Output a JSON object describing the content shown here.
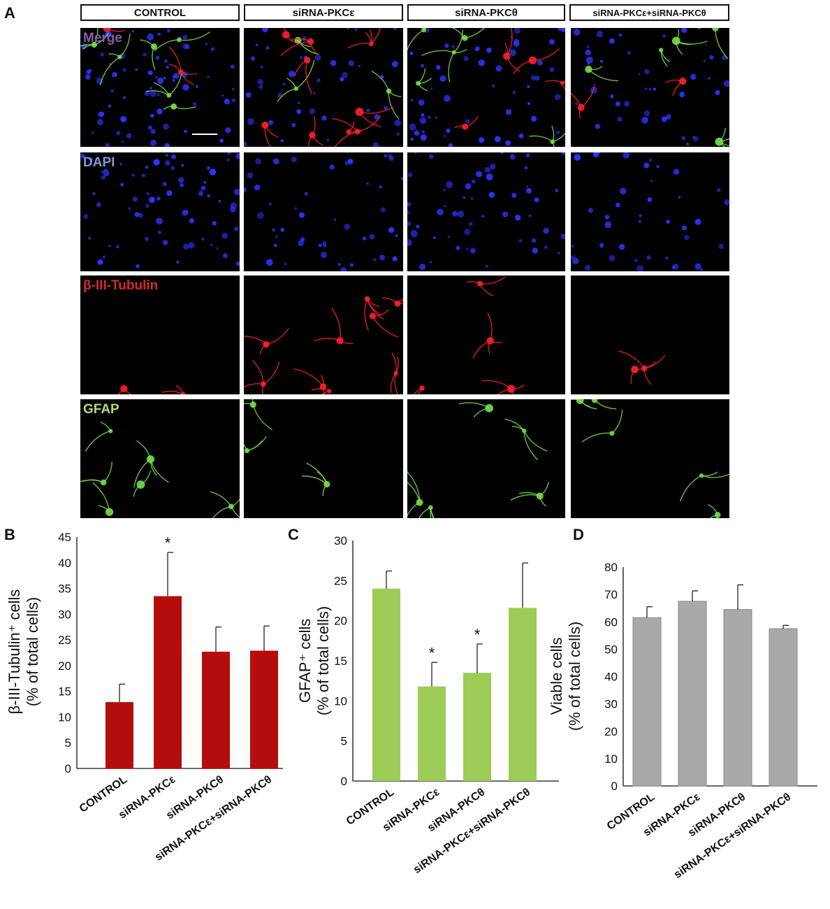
{
  "panel_letters": {
    "a": "A",
    "b": "B",
    "c": "C",
    "d": "D"
  },
  "panel_a": {
    "columns": [
      "CONTROL",
      "siRNA-PKCε",
      "siRNA-PKCθ",
      "siRNA-PKCε+siRNA-PKCθ"
    ],
    "rows": [
      {
        "label": "Merge",
        "label_color": "#8a5aa8",
        "channel": "merge"
      },
      {
        "label": "DAPI",
        "label_color": "#7f95d6",
        "channel": "dapi"
      },
      {
        "label": "β-III-Tubulin",
        "label_color": "#d9272e",
        "channel": "tubulin"
      },
      {
        "label": "GFAP",
        "label_color": "#b8d96b",
        "channel": "gfap"
      }
    ],
    "channel_colors": {
      "dapi": "#2a35ff",
      "tubulin": "#ff1f2a",
      "gfap": "#74e04a"
    }
  },
  "chart_data": [
    {
      "type": "bar",
      "panel": "B",
      "categories": [
        "CONTROL",
        "siRNA-PKCε",
        "siRNA-PKCθ",
        "siRNA-PKCε+siRNA-PKCθ"
      ],
      "values": [
        12.9,
        33.5,
        22.7,
        22.9
      ],
      "errors": [
        3.5,
        8.5,
        4.8,
        4.8
      ],
      "significance": [
        "",
        "*",
        "",
        ""
      ],
      "ylabel": "β-III-Tubulin⁺ cells",
      "ylabel2": "(% of total cells)",
      "ylim": [
        0,
        45
      ],
      "yticks": [
        "0",
        "5",
        "10",
        "15",
        "20",
        "25",
        "30",
        "35",
        "40",
        "45"
      ],
      "color": "#b50d0d"
    },
    {
      "type": "bar",
      "panel": "C",
      "categories": [
        "CONTROL",
        "siRNA-PKCε",
        "siRNA-PKCθ",
        "siRNA-PKCε+siRNA-PKCθ"
      ],
      "values": [
        24.0,
        11.8,
        13.5,
        21.6
      ],
      "errors": [
        2.2,
        3.0,
        3.6,
        5.6
      ],
      "significance": [
        "",
        "*",
        "*",
        ""
      ],
      "ylabel": "GFAP⁺ cells",
      "ylabel2": "(% of total cells)",
      "ylim": [
        0,
        30
      ],
      "yticks": [
        "0",
        "5",
        "10",
        "15",
        "20",
        "25",
        "30"
      ],
      "color": "#9ccc57"
    },
    {
      "type": "bar",
      "panel": "D",
      "categories": [
        "CONTROL",
        "siRNA-PKCε",
        "siRNA-PKCθ",
        "siRNA-PKCε+siRNA-PKCθ"
      ],
      "values": [
        61.5,
        67.5,
        64.5,
        57.5
      ],
      "errors": [
        4.0,
        3.8,
        9.0,
        1.2
      ],
      "significance": [
        "",
        "",
        "",
        ""
      ],
      "ylabel": "Viable cells",
      "ylabel2": "(% of total cells)",
      "ylim": [
        0,
        80
      ],
      "yticks": [
        "0",
        "10",
        "20",
        "30",
        "40",
        "50",
        "60",
        "70",
        "80"
      ],
      "color": "#a9a9a9"
    }
  ]
}
